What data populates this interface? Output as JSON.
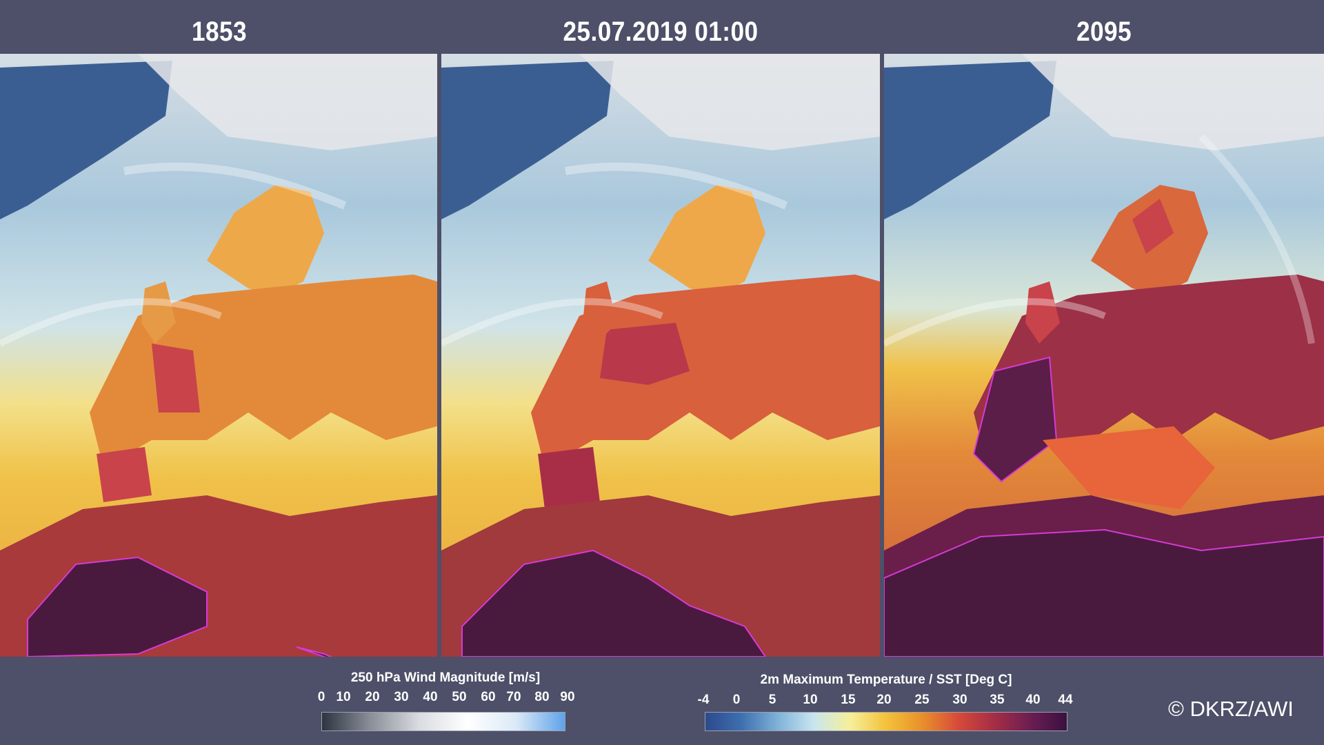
{
  "panels": [
    {
      "title": "1853"
    },
    {
      "title": "25.07.2019 01:00"
    },
    {
      "title": "2095"
    }
  ],
  "legend_wind": {
    "title": "250 hPa Wind Magnitude  [m/s]",
    "ticks": [
      "0",
      "10",
      "20",
      "30",
      "40",
      "50",
      "60",
      "70",
      "80",
      "90"
    ],
    "colors": [
      "#2e3440",
      "#8a8f98",
      "#d9dce0",
      "#ffffff",
      "#dbe9f7",
      "#5fa3ea"
    ]
  },
  "legend_temp": {
    "title": "2m Maximum Temperature / SST  [Deg C]",
    "ticks": [
      "-4",
      "0",
      "5",
      "10",
      "15",
      "20",
      "25",
      "30",
      "35",
      "40",
      "44"
    ],
    "colors": [
      "#2c4a8c",
      "#3e6fb0",
      "#7fb2d8",
      "#c9e6ef",
      "#f6ef9a",
      "#f4c23b",
      "#e8902a",
      "#d64a3a",
      "#a52d45",
      "#6b1e52",
      "#3a1040"
    ]
  },
  "copyright": "© DKRZ/AWI"
}
